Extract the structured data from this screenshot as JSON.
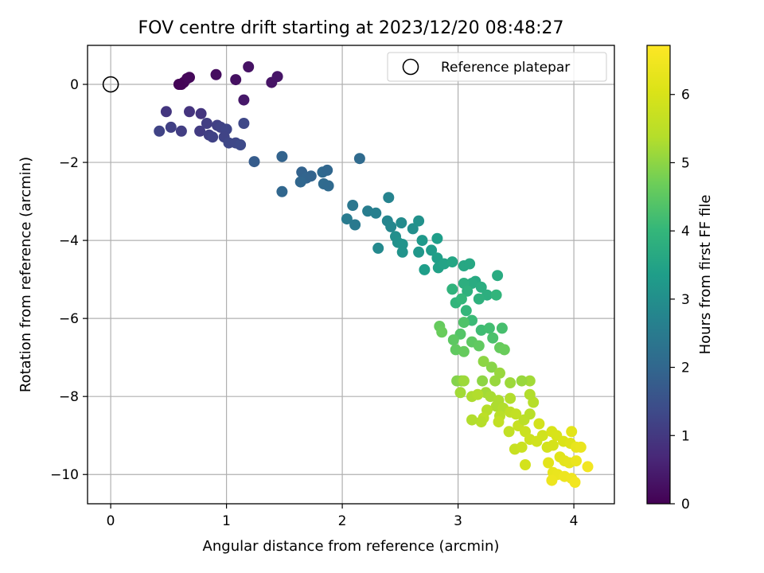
{
  "chart_data": {
    "type": "scatter",
    "title": "FOV centre drift starting at 2023/12/20 08:48:27",
    "xlabel": "Angular distance from reference (arcmin)",
    "ylabel": "Rotation from reference (arcmin)",
    "xlim": [
      -0.2,
      4.35
    ],
    "ylim": [
      -10.75,
      1.0
    ],
    "xticks": [
      0,
      1,
      2,
      3,
      4
    ],
    "yticks": [
      0,
      -2,
      -4,
      -6,
      -8,
      -10
    ],
    "xtick_labels": [
      "0",
      "1",
      "2",
      "3",
      "4"
    ],
    "ytick_labels": [
      "0",
      "−2",
      "−4",
      "−6",
      "−8",
      "−10"
    ],
    "grid": true,
    "legend_position": "upper right",
    "reference": {
      "label": "Reference platepar",
      "x": 0,
      "y": 0
    },
    "colorbar": {
      "label": "Hours from first FF file",
      "min": 0,
      "max": 6.72,
      "ticks": [
        0,
        1,
        2,
        3,
        4,
        5,
        6
      ],
      "tick_labels": [
        "0",
        "1",
        "2",
        "3",
        "4",
        "5",
        "6"
      ],
      "colormap": "viridis"
    },
    "columns": [
      "x",
      "y",
      "hours"
    ],
    "points": [
      [
        0.63,
        0.05,
        0.05
      ],
      [
        0.61,
        0.0,
        0.08
      ],
      [
        0.66,
        0.15,
        0.1
      ],
      [
        0.68,
        0.18,
        0.12
      ],
      [
        0.59,
        0.0,
        0.06
      ],
      [
        0.91,
        0.25,
        0.2
      ],
      [
        1.08,
        0.12,
        0.25
      ],
      [
        1.19,
        0.45,
        0.3
      ],
      [
        1.39,
        0.05,
        0.32
      ],
      [
        1.44,
        0.2,
        0.35
      ],
      [
        1.15,
        -0.4,
        0.4
      ],
      [
        0.48,
        -0.7,
        0.95
      ],
      [
        0.68,
        -0.7,
        0.9
      ],
      [
        0.78,
        -0.75,
        0.92
      ],
      [
        0.42,
        -1.2,
        1.2
      ],
      [
        0.52,
        -1.1,
        1.15
      ],
      [
        0.61,
        -1.2,
        1.1
      ],
      [
        0.77,
        -1.2,
        1.05
      ],
      [
        0.83,
        -1.0,
        1.1
      ],
      [
        0.85,
        -1.3,
        1.12
      ],
      [
        0.88,
        -1.35,
        1.18
      ],
      [
        0.92,
        -1.05,
        1.15
      ],
      [
        0.95,
        -1.1,
        1.2
      ],
      [
        1.0,
        -1.15,
        1.25
      ],
      [
        0.98,
        -1.35,
        1.22
      ],
      [
        1.02,
        -1.5,
        1.28
      ],
      [
        1.08,
        -1.5,
        1.3
      ],
      [
        1.12,
        -1.55,
        1.35
      ],
      [
        1.15,
        -1.0,
        1.3
      ],
      [
        1.24,
        -1.98,
        1.75
      ],
      [
        1.48,
        -1.85,
        1.9
      ],
      [
        1.48,
        -2.75,
        2.0
      ],
      [
        1.65,
        -2.25,
        1.9
      ],
      [
        1.69,
        -2.4,
        1.95
      ],
      [
        1.73,
        -2.35,
        1.92
      ],
      [
        1.64,
        -2.5,
        2.0
      ],
      [
        1.83,
        -2.25,
        2.05
      ],
      [
        1.87,
        -2.2,
        2.0
      ],
      [
        1.84,
        -2.55,
        2.1
      ],
      [
        1.88,
        -2.6,
        2.08
      ],
      [
        2.15,
        -1.9,
        2.1
      ],
      [
        2.09,
        -3.1,
        2.4
      ],
      [
        2.04,
        -3.45,
        2.5
      ],
      [
        2.11,
        -3.6,
        2.45
      ],
      [
        2.22,
        -3.25,
        2.55
      ],
      [
        2.29,
        -3.3,
        2.6
      ],
      [
        2.4,
        -2.9,
        2.7
      ],
      [
        2.39,
        -3.5,
        2.75
      ],
      [
        2.31,
        -4.2,
        2.85
      ],
      [
        2.42,
        -3.65,
        2.8
      ],
      [
        2.51,
        -3.55,
        2.9
      ],
      [
        2.46,
        -3.9,
        3.0
      ],
      [
        2.48,
        -4.05,
        3.05
      ],
      [
        2.52,
        -4.1,
        3.1
      ],
      [
        2.52,
        -4.3,
        3.1
      ],
      [
        2.61,
        -3.7,
        3.0
      ],
      [
        2.66,
        -3.5,
        3.05
      ],
      [
        2.66,
        -4.3,
        3.2
      ],
      [
        2.69,
        -4.0,
        3.25
      ],
      [
        2.71,
        -4.75,
        3.35
      ],
      [
        2.77,
        -4.25,
        3.3
      ],
      [
        2.82,
        -3.95,
        3.35
      ],
      [
        2.82,
        -4.45,
        3.4
      ],
      [
        2.83,
        -4.7,
        3.45
      ],
      [
        2.88,
        -4.6,
        3.5
      ],
      [
        2.95,
        -4.55,
        3.55
      ],
      [
        3.05,
        -4.65,
        3.6
      ],
      [
        3.1,
        -4.6,
        3.6
      ],
      [
        3.15,
        -5.05,
        3.65
      ],
      [
        3.12,
        -5.1,
        3.7
      ],
      [
        3.2,
        -5.2,
        3.75
      ],
      [
        3.34,
        -4.9,
        3.7
      ],
      [
        3.25,
        -5.4,
        3.8
      ],
      [
        3.18,
        -5.5,
        3.85
      ],
      [
        3.05,
        -5.1,
        3.8
      ],
      [
        3.08,
        -5.3,
        3.85
      ],
      [
        2.95,
        -5.25,
        3.9
      ],
      [
        2.98,
        -5.6,
        3.95
      ],
      [
        3.03,
        -5.5,
        4.0
      ],
      [
        3.07,
        -5.8,
        4.0
      ],
      [
        3.33,
        -5.4,
        3.95
      ],
      [
        3.12,
        -6.05,
        4.1
      ],
      [
        3.2,
        -6.3,
        4.15
      ],
      [
        3.27,
        -6.25,
        4.2
      ],
      [
        3.38,
        -6.25,
        4.25
      ],
      [
        3.3,
        -6.5,
        4.3
      ],
      [
        3.05,
        -6.1,
        4.35
      ],
      [
        3.02,
        -6.4,
        4.4
      ],
      [
        3.12,
        -6.6,
        4.5
      ],
      [
        3.18,
        -6.7,
        4.55
      ],
      [
        3.36,
        -6.75,
        4.6
      ],
      [
        3.4,
        -6.8,
        4.65
      ],
      [
        2.96,
        -6.55,
        4.5
      ],
      [
        2.98,
        -6.8,
        4.55
      ],
      [
        3.05,
        -6.85,
        4.6
      ],
      [
        2.84,
        -6.2,
        4.6
      ],
      [
        2.86,
        -6.35,
        4.65
      ],
      [
        2.99,
        -7.6,
        4.9
      ],
      [
        3.03,
        -7.6,
        4.95
      ],
      [
        3.21,
        -7.6,
        5.0
      ],
      [
        3.29,
        -7.25,
        4.95
      ],
      [
        3.22,
        -7.1,
        5.0
      ],
      [
        3.32,
        -7.6,
        5.1
      ],
      [
        3.36,
        -7.4,
        5.1
      ],
      [
        3.24,
        -7.9,
        5.2
      ],
      [
        3.28,
        -8.0,
        5.25
      ],
      [
        3.35,
        -8.1,
        5.3
      ],
      [
        3.45,
        -8.05,
        5.35
      ],
      [
        3.33,
        -8.25,
        5.3
      ],
      [
        3.39,
        -8.3,
        5.35
      ],
      [
        3.25,
        -8.35,
        5.4
      ],
      [
        3.36,
        -8.5,
        5.45
      ],
      [
        3.12,
        -8.0,
        5.3
      ],
      [
        3.17,
        -7.95,
        5.35
      ],
      [
        3.22,
        -8.55,
        5.5
      ],
      [
        3.35,
        -8.65,
        5.6
      ],
      [
        3.45,
        -8.4,
        5.55
      ],
      [
        3.5,
        -8.45,
        5.6
      ],
      [
        3.52,
        -8.75,
        5.7
      ],
      [
        3.58,
        -8.9,
        5.75
      ],
      [
        3.62,
        -9.1,
        5.8
      ],
      [
        3.68,
        -9.15,
        5.85
      ],
      [
        3.73,
        -9.0,
        5.85
      ],
      [
        3.77,
        -9.3,
        5.9
      ],
      [
        3.82,
        -9.25,
        5.95
      ],
      [
        3.7,
        -8.7,
        5.9
      ],
      [
        3.81,
        -8.9,
        6.0
      ],
      [
        3.85,
        -9.0,
        6.0
      ],
      [
        3.91,
        -9.15,
        6.05
      ],
      [
        3.97,
        -9.2,
        6.1
      ],
      [
        3.88,
        -9.55,
        6.15
      ],
      [
        3.92,
        -9.65,
        6.2
      ],
      [
        3.96,
        -9.7,
        6.25
      ],
      [
        3.78,
        -9.7,
        6.2
      ],
      [
        3.82,
        -9.95,
        6.3
      ],
      [
        3.86,
        -10.0,
        6.35
      ],
      [
        3.92,
        -10.05,
        6.4
      ],
      [
        3.98,
        -10.1,
        6.45
      ],
      [
        4.01,
        -10.2,
        6.5
      ],
      [
        3.81,
        -10.15,
        6.4
      ],
      [
        4.02,
        -9.65,
        6.35
      ],
      [
        4.12,
        -9.8,
        6.5
      ],
      [
        4.02,
        -9.3,
        6.3
      ],
      [
        4.06,
        -9.3,
        6.35
      ],
      [
        3.98,
        -8.9,
        6.2
      ],
      [
        3.58,
        -9.75,
        5.9
      ],
      [
        3.49,
        -9.35,
        5.7
      ],
      [
        3.55,
        -9.3,
        5.75
      ],
      [
        3.44,
        -8.9,
        5.6
      ],
      [
        3.57,
        -8.6,
        5.5
      ],
      [
        3.62,
        -8.45,
        5.45
      ],
      [
        3.65,
        -8.15,
        5.4
      ],
      [
        3.62,
        -7.95,
        5.35
      ],
      [
        3.62,
        -7.6,
        5.2
      ],
      [
        3.55,
        -7.6,
        5.1
      ],
      [
        3.45,
        -7.65,
        5.15
      ],
      [
        3.2,
        -8.65,
        5.4
      ],
      [
        3.12,
        -8.6,
        5.35
      ],
      [
        3.02,
        -7.9,
        5.2
      ],
      [
        3.05,
        -7.6,
        5.15
      ]
    ]
  }
}
